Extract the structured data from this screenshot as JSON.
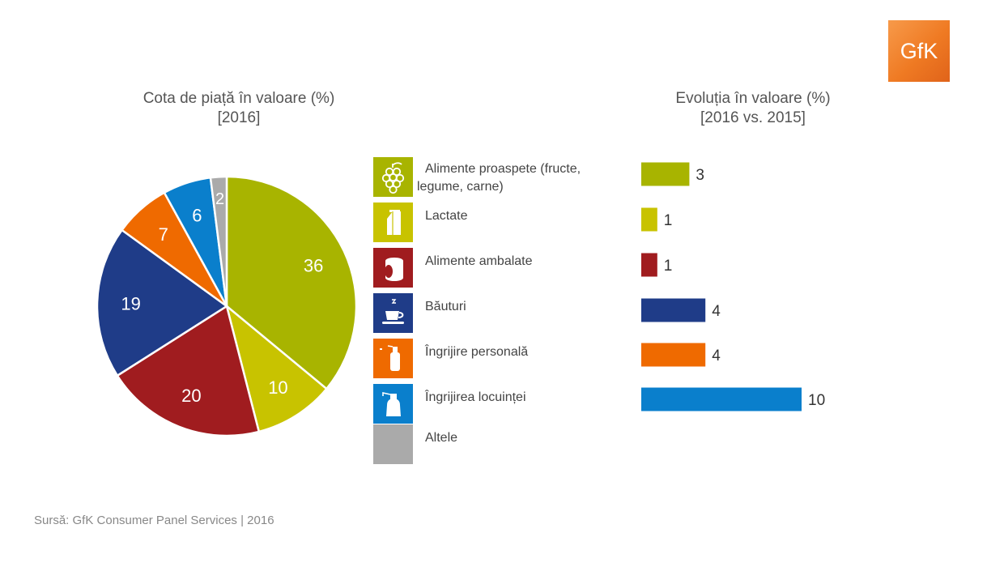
{
  "logo": {
    "text": "GfK"
  },
  "categories": [
    {
      "label": "Alimente proaspete (fructe, legume, carne)",
      "color": "#a8b400",
      "icon": "grapes-icon"
    },
    {
      "label": "Lactate",
      "color": "#c8c300",
      "icon": "milk-carton-icon"
    },
    {
      "label": "Alimente ambalate",
      "color": "#a01c1f",
      "icon": "canned-food-icon"
    },
    {
      "label": "Băuturi",
      "color": "#1f3c88",
      "icon": "coffee-cup-icon"
    },
    {
      "label": "Îngrijire personală",
      "color": "#ef6a00",
      "icon": "spray-bottle-icon"
    },
    {
      "label": "Îngrijirea locuinței",
      "color": "#0a7fcc",
      "icon": "cleaning-bottle-icon"
    },
    {
      "label": "Altele",
      "color": "#aaaaaa",
      "icon": ""
    }
  ],
  "source": "Sursă: GfK Consumer Panel Services | 2016",
  "chart_data": [
    {
      "type": "pie",
      "title": "Cota de piață în valoare (%)",
      "subtitle": "[2016]",
      "categories": [
        "Alimente proaspete (fructe, legume, carne)",
        "Lactate",
        "Alimente ambalate",
        "Băuturi",
        "Îngrijire personală",
        "Îngrijirea locuinței",
        "Altele"
      ],
      "values": [
        36,
        10,
        20,
        19,
        7,
        6,
        2
      ],
      "colors": [
        "#a8b400",
        "#c8c300",
        "#a01c1f",
        "#1f3c88",
        "#ef6a00",
        "#0a7fcc",
        "#aaaaaa"
      ]
    },
    {
      "type": "bar",
      "orientation": "horizontal",
      "title": "Evoluția în valoare (%)",
      "subtitle": "[2016 vs. 2015]",
      "categories": [
        "Alimente proaspete (fructe, legume, carne)",
        "Lactate",
        "Alimente ambalate",
        "Băuturi",
        "Îngrijire personală",
        "Îngrijirea locuinței"
      ],
      "values": [
        3,
        1,
        1,
        4,
        4,
        10
      ],
      "colors": [
        "#a8b400",
        "#c8c300",
        "#a01c1f",
        "#1f3c88",
        "#ef6a00",
        "#0a7fcc"
      ]
    }
  ]
}
